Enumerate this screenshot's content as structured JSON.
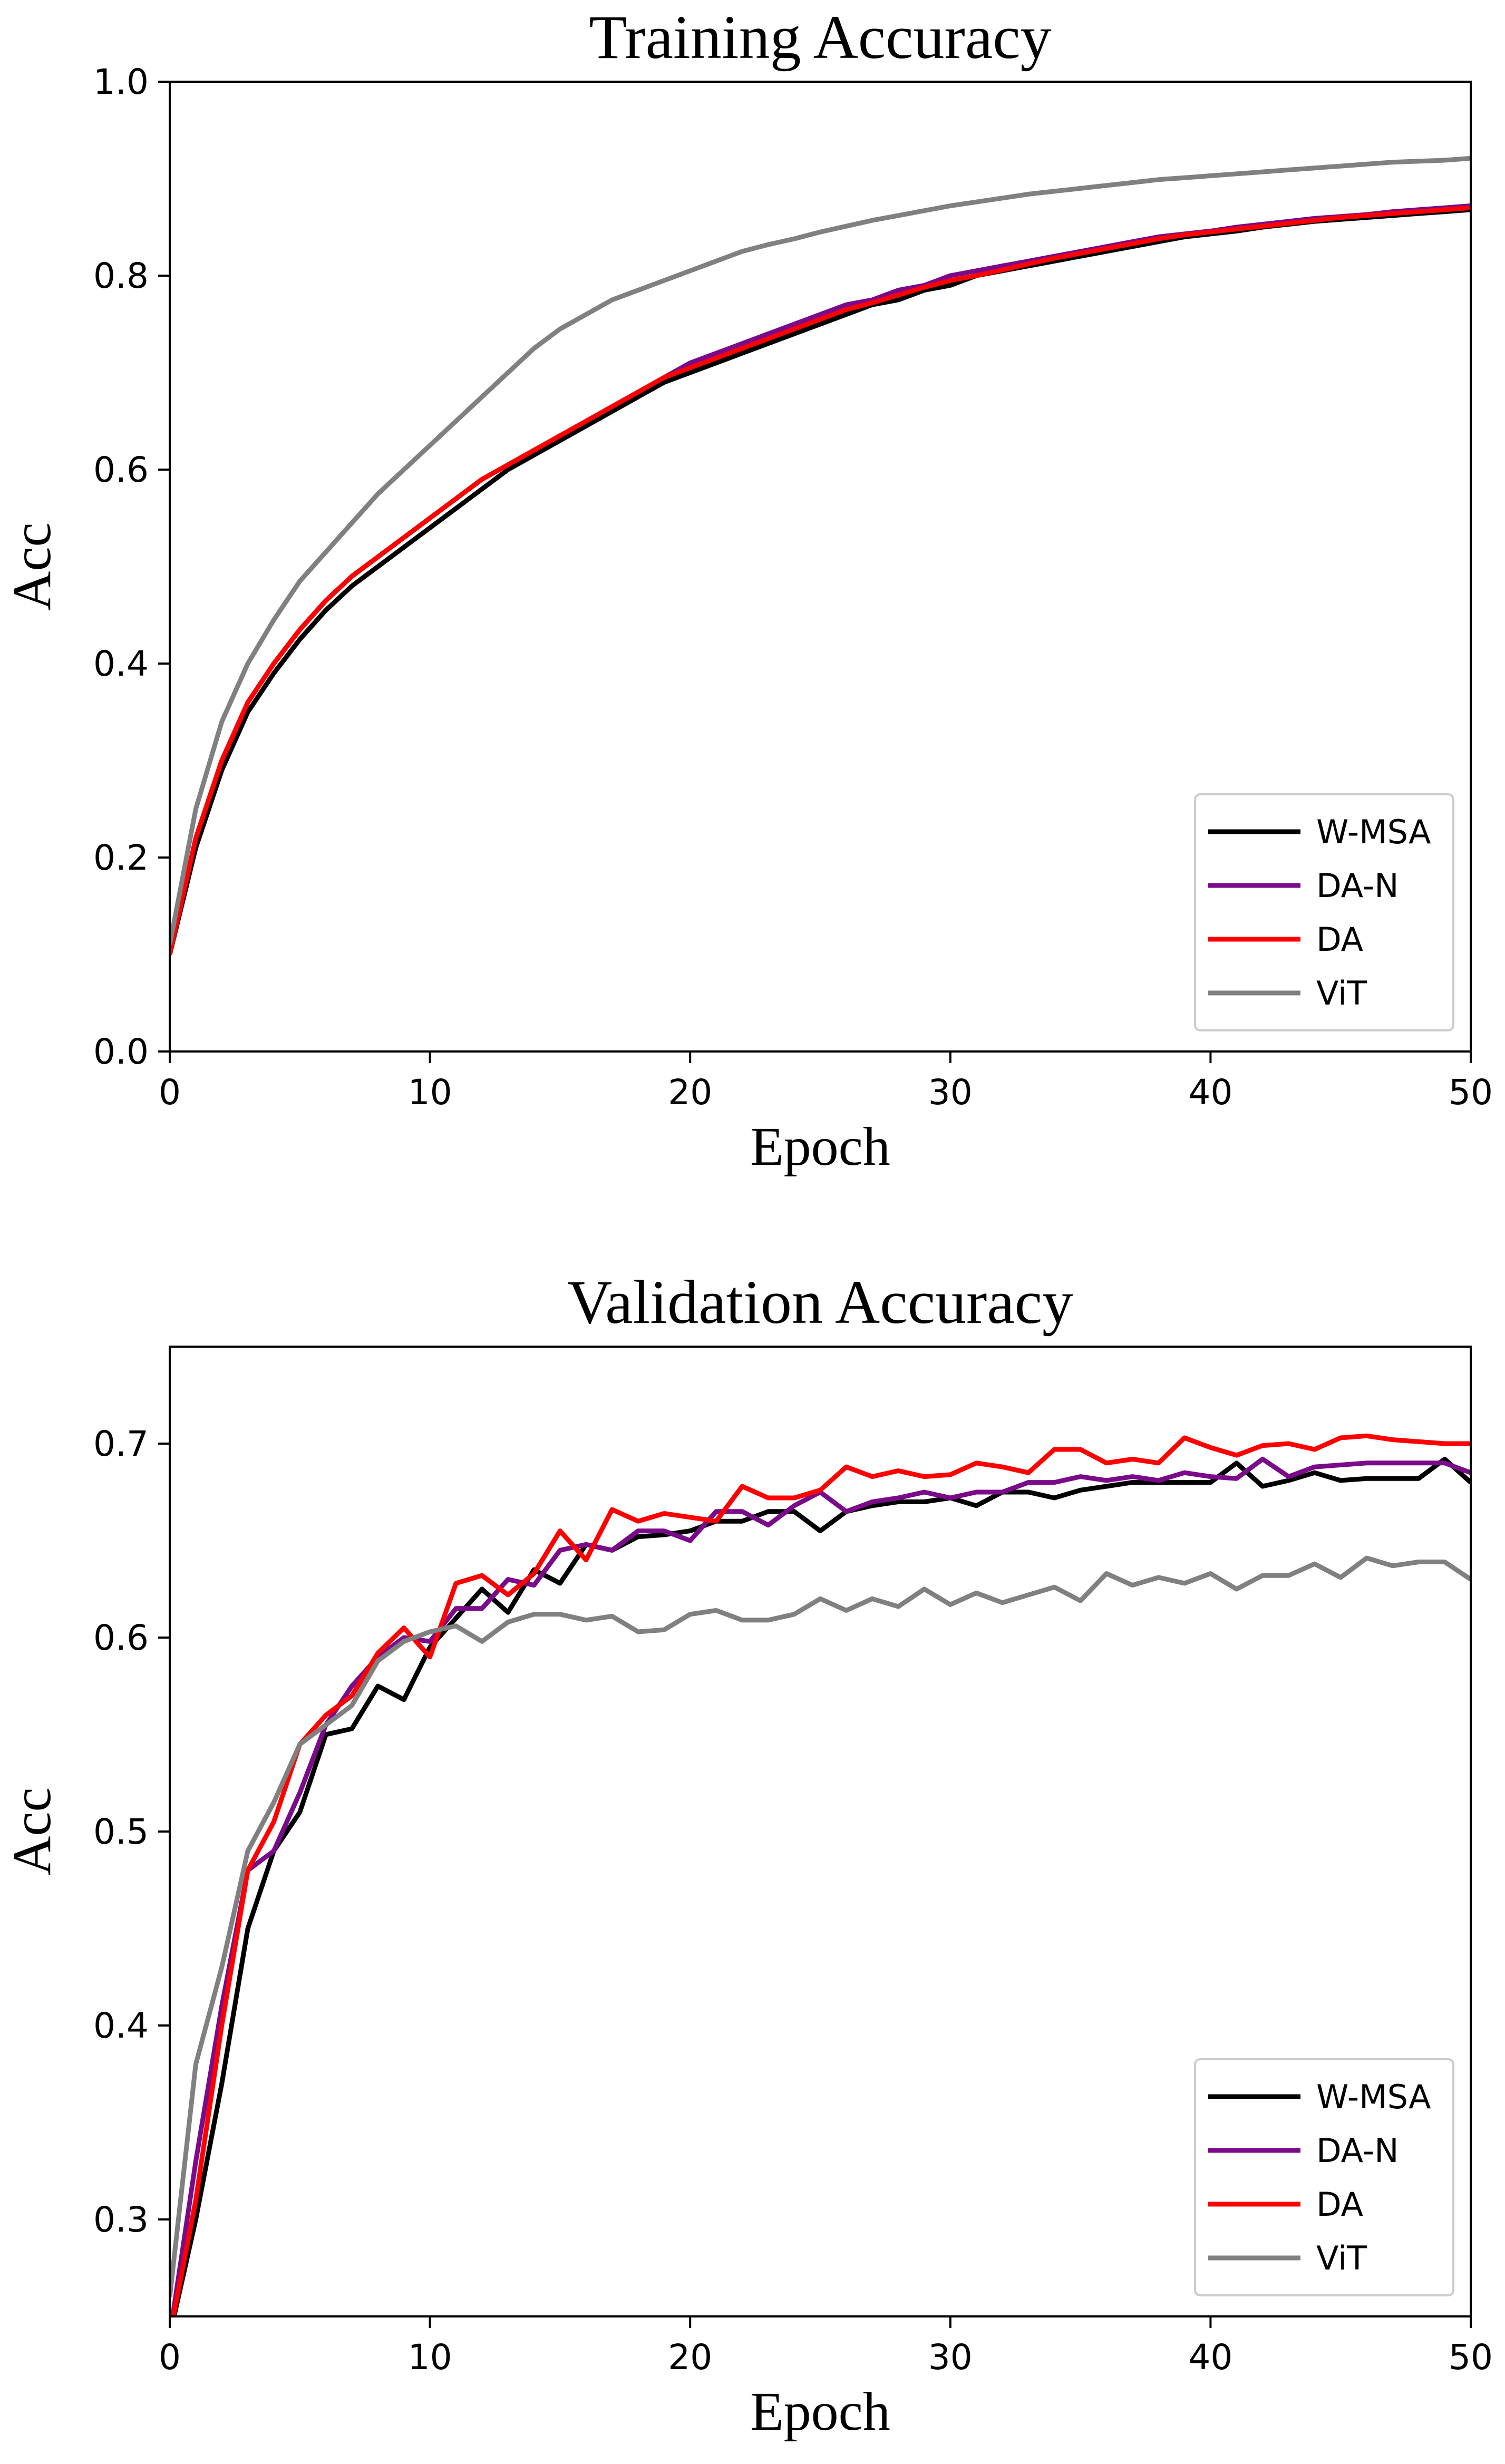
{
  "chart_data": [
    {
      "type": "line",
      "title": "Training Accuracy",
      "xlabel": "Epoch",
      "ylabel": "Acc",
      "xlim": [
        0,
        50
      ],
      "ylim": [
        0.0,
        1.0
      ],
      "xticks": [
        "0",
        "10",
        "20",
        "30",
        "40",
        "50"
      ],
      "yticks": [
        "0.0",
        "0.2",
        "0.4",
        "0.6",
        "0.8",
        "1.0"
      ],
      "grid": false,
      "legend_position": "lower-right",
      "x": [
        0,
        1,
        2,
        3,
        4,
        5,
        6,
        7,
        8,
        9,
        10,
        11,
        12,
        13,
        14,
        15,
        16,
        17,
        18,
        19,
        20,
        21,
        22,
        23,
        24,
        25,
        26,
        27,
        28,
        29,
        30,
        31,
        32,
        33,
        34,
        35,
        36,
        37,
        38,
        39,
        40,
        41,
        42,
        43,
        44,
        45,
        46,
        47,
        48,
        49,
        50
      ],
      "series": [
        {
          "name": "W-MSA",
          "color": "#000000",
          "values": [
            0.1,
            0.21,
            0.29,
            0.35,
            0.39,
            0.425,
            0.455,
            0.48,
            0.5,
            0.52,
            0.54,
            0.56,
            0.58,
            0.6,
            0.615,
            0.63,
            0.645,
            0.66,
            0.675,
            0.69,
            0.7,
            0.71,
            0.72,
            0.73,
            0.74,
            0.75,
            0.76,
            0.77,
            0.775,
            0.785,
            0.79,
            0.8,
            0.805,
            0.81,
            0.815,
            0.82,
            0.825,
            0.83,
            0.835,
            0.84,
            0.843,
            0.846,
            0.85,
            0.853,
            0.856,
            0.858,
            0.86,
            0.862,
            0.864,
            0.866,
            0.868
          ]
        },
        {
          "name": "DA-N",
          "color": "#7b0a8a",
          "values": [
            0.1,
            0.22,
            0.3,
            0.36,
            0.4,
            0.435,
            0.465,
            0.49,
            0.51,
            0.53,
            0.55,
            0.57,
            0.59,
            0.605,
            0.62,
            0.635,
            0.65,
            0.665,
            0.68,
            0.695,
            0.71,
            0.72,
            0.73,
            0.74,
            0.75,
            0.76,
            0.77,
            0.775,
            0.785,
            0.79,
            0.8,
            0.805,
            0.81,
            0.815,
            0.82,
            0.825,
            0.83,
            0.835,
            0.84,
            0.843,
            0.846,
            0.85,
            0.853,
            0.856,
            0.859,
            0.861,
            0.863,
            0.866,
            0.868,
            0.87,
            0.872
          ]
        },
        {
          "name": "DA",
          "color": "#ff0000",
          "values": [
            0.1,
            0.22,
            0.3,
            0.36,
            0.4,
            0.435,
            0.465,
            0.49,
            0.51,
            0.53,
            0.55,
            0.57,
            0.59,
            0.605,
            0.62,
            0.635,
            0.65,
            0.665,
            0.68,
            0.695,
            0.705,
            0.715,
            0.725,
            0.735,
            0.745,
            0.755,
            0.765,
            0.772,
            0.78,
            0.788,
            0.795,
            0.8,
            0.806,
            0.812,
            0.818,
            0.823,
            0.828,
            0.833,
            0.838,
            0.842,
            0.845,
            0.848,
            0.851,
            0.854,
            0.857,
            0.86,
            0.862,
            0.864,
            0.866,
            0.868,
            0.87
          ]
        },
        {
          "name": "ViT",
          "color": "#808080",
          "values": [
            0.11,
            0.25,
            0.34,
            0.4,
            0.445,
            0.485,
            0.515,
            0.545,
            0.575,
            0.6,
            0.625,
            0.65,
            0.675,
            0.7,
            0.725,
            0.745,
            0.76,
            0.775,
            0.785,
            0.795,
            0.805,
            0.815,
            0.825,
            0.832,
            0.838,
            0.845,
            0.851,
            0.857,
            0.862,
            0.867,
            0.872,
            0.876,
            0.88,
            0.884,
            0.887,
            0.89,
            0.893,
            0.896,
            0.899,
            0.901,
            0.903,
            0.905,
            0.907,
            0.909,
            0.911,
            0.913,
            0.915,
            0.917,
            0.918,
            0.919,
            0.921
          ]
        }
      ]
    },
    {
      "type": "line",
      "title": "Validation Accuracy",
      "xlabel": "Epoch",
      "ylabel": "Acc",
      "xlim": [
        0,
        50
      ],
      "ylim": [
        0.25,
        0.75
      ],
      "xticks": [
        "0",
        "10",
        "20",
        "30",
        "40",
        "50"
      ],
      "yticks": [
        "0.3",
        "0.4",
        "0.5",
        "0.6",
        "0.7"
      ],
      "grid": false,
      "legend_position": "lower-right",
      "x": [
        0,
        1,
        2,
        3,
        4,
        5,
        6,
        7,
        8,
        9,
        10,
        11,
        12,
        13,
        14,
        15,
        16,
        17,
        18,
        19,
        20,
        21,
        22,
        23,
        24,
        25,
        26,
        27,
        28,
        29,
        30,
        31,
        32,
        33,
        34,
        35,
        36,
        37,
        38,
        39,
        40,
        41,
        42,
        43,
        44,
        45,
        46,
        47,
        48,
        49,
        50
      ],
      "series": [
        {
          "name": "W-MSA",
          "color": "#000000",
          "values": [
            0.24,
            0.3,
            0.37,
            0.45,
            0.49,
            0.51,
            0.55,
            0.553,
            0.575,
            0.568,
            0.595,
            0.61,
            0.625,
            0.613,
            0.635,
            0.628,
            0.648,
            0.645,
            0.652,
            0.653,
            0.655,
            0.66,
            0.66,
            0.665,
            0.665,
            0.655,
            0.665,
            0.668,
            0.67,
            0.67,
            0.672,
            0.668,
            0.675,
            0.675,
            0.672,
            0.676,
            0.678,
            0.68,
            0.68,
            0.68,
            0.68,
            0.69,
            0.678,
            0.681,
            0.685,
            0.681,
            0.682,
            0.682,
            0.682,
            0.692,
            0.68
          ]
        },
        {
          "name": "DA-N",
          "color": "#7b0a8a",
          "values": [
            0.24,
            0.33,
            0.41,
            0.48,
            0.49,
            0.52,
            0.555,
            0.575,
            0.59,
            0.6,
            0.598,
            0.615,
            0.615,
            0.63,
            0.627,
            0.645,
            0.648,
            0.645,
            0.655,
            0.655,
            0.65,
            0.665,
            0.665,
            0.658,
            0.668,
            0.675,
            0.665,
            0.67,
            0.672,
            0.675,
            0.672,
            0.675,
            0.675,
            0.68,
            0.68,
            0.683,
            0.681,
            0.683,
            0.681,
            0.685,
            0.683,
            0.682,
            0.692,
            0.683,
            0.688,
            0.689,
            0.69,
            0.69,
            0.69,
            0.69,
            0.685
          ]
        },
        {
          "name": "DA",
          "color": "#ff0000",
          "values": [
            0.24,
            0.31,
            0.4,
            0.48,
            0.505,
            0.545,
            0.56,
            0.57,
            0.592,
            0.605,
            0.59,
            0.628,
            0.632,
            0.622,
            0.633,
            0.655,
            0.64,
            0.666,
            0.66,
            0.664,
            0.662,
            0.66,
            0.678,
            0.672,
            0.672,
            0.676,
            0.688,
            0.683,
            0.686,
            0.683,
            0.684,
            0.69,
            0.688,
            0.685,
            0.697,
            0.697,
            0.69,
            0.692,
            0.69,
            0.703,
            0.698,
            0.694,
            0.699,
            0.7,
            0.697,
            0.703,
            0.704,
            0.702,
            0.701,
            0.7,
            0.7
          ]
        },
        {
          "name": "ViT",
          "color": "#808080",
          "values": [
            0.26,
            0.38,
            0.43,
            0.49,
            0.515,
            0.545,
            0.555,
            0.565,
            0.588,
            0.598,
            0.603,
            0.606,
            0.598,
            0.608,
            0.612,
            0.612,
            0.609,
            0.611,
            0.603,
            0.604,
            0.612,
            0.614,
            0.609,
            0.609,
            0.612,
            0.62,
            0.614,
            0.62,
            0.616,
            0.625,
            0.617,
            0.623,
            0.618,
            0.622,
            0.626,
            0.619,
            0.633,
            0.627,
            0.631,
            0.628,
            0.633,
            0.625,
            0.632,
            0.632,
            0.638,
            0.631,
            0.641,
            0.637,
            0.639,
            0.639,
            0.63
          ]
        }
      ]
    }
  ]
}
